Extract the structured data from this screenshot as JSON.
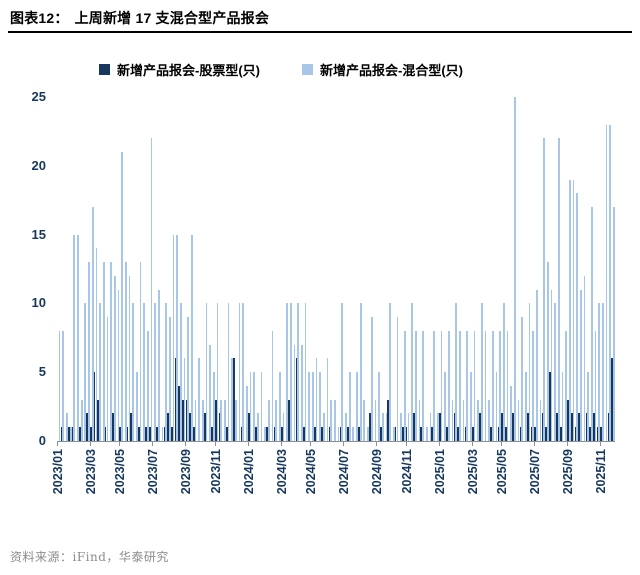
{
  "header": {
    "label": "图表12：",
    "title": "上周新增 17 支混合型产品报会"
  },
  "legend": [
    {
      "label": "新增产品报会-股票型(只)",
      "color": "#17375e"
    },
    {
      "label": "新增产品报会-混合型(只)",
      "color": "#a8c7e8"
    }
  ],
  "source": {
    "text": "资料来源：iFind，华泰研究"
  },
  "chart_data": {
    "type": "bar",
    "title": "上周新增 17 支混合型产品报会",
    "x_unit": "week",
    "x_range": [
      "2023/01",
      "2025/11"
    ],
    "ylim": [
      0,
      25
    ],
    "yticks": [
      0,
      5,
      10,
      15,
      20,
      25
    ],
    "grid": false,
    "legend_position": "top",
    "xtick_labels": [
      "2023/01",
      "2023/03",
      "2023/05",
      "2023/07",
      "2023/09",
      "2023/11",
      "2024/01",
      "2024/03",
      "2024/05",
      "2024/07",
      "2024/09",
      "2024/11",
      "2025/01",
      "2025/03",
      "2025/05",
      "2025/07",
      "2025/09",
      "2025/11"
    ],
    "xtick_week_index": [
      0,
      9,
      17,
      26,
      35,
      43,
      52,
      61,
      69,
      78,
      87,
      95,
      104,
      113,
      121,
      130,
      139,
      148
    ],
    "series": [
      {
        "name": "新增产品报会-股票型(只)",
        "color": "#17375e",
        "values": [
          0,
          1,
          0,
          1,
          1,
          0,
          1,
          0,
          2,
          1,
          5,
          3,
          0,
          1,
          0,
          2,
          0,
          1,
          0,
          1,
          2,
          0,
          1,
          0,
          1,
          1,
          0,
          1,
          0,
          1,
          2,
          1,
          6,
          4,
          3,
          3,
          2,
          1,
          0,
          0,
          2,
          0,
          1,
          3,
          2,
          0,
          1,
          0,
          6,
          0,
          1,
          0,
          2,
          0,
          1,
          0,
          0,
          1,
          0,
          1,
          0,
          1,
          0,
          3,
          0,
          6,
          0,
          1,
          0,
          0,
          1,
          0,
          1,
          0,
          1,
          0,
          0,
          1,
          0,
          1,
          0,
          0,
          1,
          0,
          0,
          2,
          0,
          0,
          1,
          0,
          3,
          0,
          1,
          0,
          1,
          1,
          0,
          2,
          0,
          1,
          0,
          0,
          1,
          0,
          2,
          0,
          1,
          0,
          2,
          1,
          0,
          1,
          0,
          1,
          0,
          2,
          0,
          0,
          1,
          0,
          1,
          2,
          1,
          0,
          2,
          0,
          1,
          0,
          2,
          1,
          1,
          0,
          2,
          1,
          5,
          0,
          2,
          1,
          0,
          3,
          2,
          1,
          2,
          0,
          2,
          1,
          2,
          1,
          1,
          0,
          2,
          6
        ]
      },
      {
        "name": "新增产品报会-混合型(只)",
        "color": "#a8c7e8",
        "values": [
          8,
          8,
          2,
          1,
          15,
          15,
          3,
          10,
          13,
          17,
          14,
          10,
          13,
          9,
          13,
          12,
          11,
          21,
          13,
          12,
          10,
          5,
          13,
          10,
          8,
          22,
          10,
          11,
          1,
          10,
          9,
          15,
          15,
          10,
          6,
          9,
          15,
          3,
          6,
          3,
          10,
          7,
          5,
          10,
          3,
          3,
          10,
          6,
          3,
          10,
          10,
          4,
          5,
          5,
          2,
          5,
          1,
          3,
          8,
          3,
          5,
          2,
          10,
          10,
          7,
          10,
          7,
          10,
          5,
          5,
          6,
          5,
          2,
          6,
          3,
          3,
          1,
          10,
          2,
          5,
          1,
          5,
          10,
          3,
          1,
          9,
          3,
          5,
          2,
          2,
          10,
          1,
          9,
          2,
          8,
          2,
          10,
          8,
          3,
          8,
          1,
          2,
          8,
          2,
          8,
          5,
          8,
          3,
          10,
          8,
          3,
          8,
          5,
          8,
          3,
          10,
          8,
          3,
          8,
          5,
          8,
          10,
          8,
          4,
          25,
          3,
          9,
          5,
          10,
          8,
          11,
          3,
          22,
          13,
          11,
          10,
          22,
          5,
          8,
          19,
          19,
          18,
          11,
          12,
          5,
          17,
          8,
          10,
          10,
          23,
          23,
          17
        ]
      }
    ]
  }
}
